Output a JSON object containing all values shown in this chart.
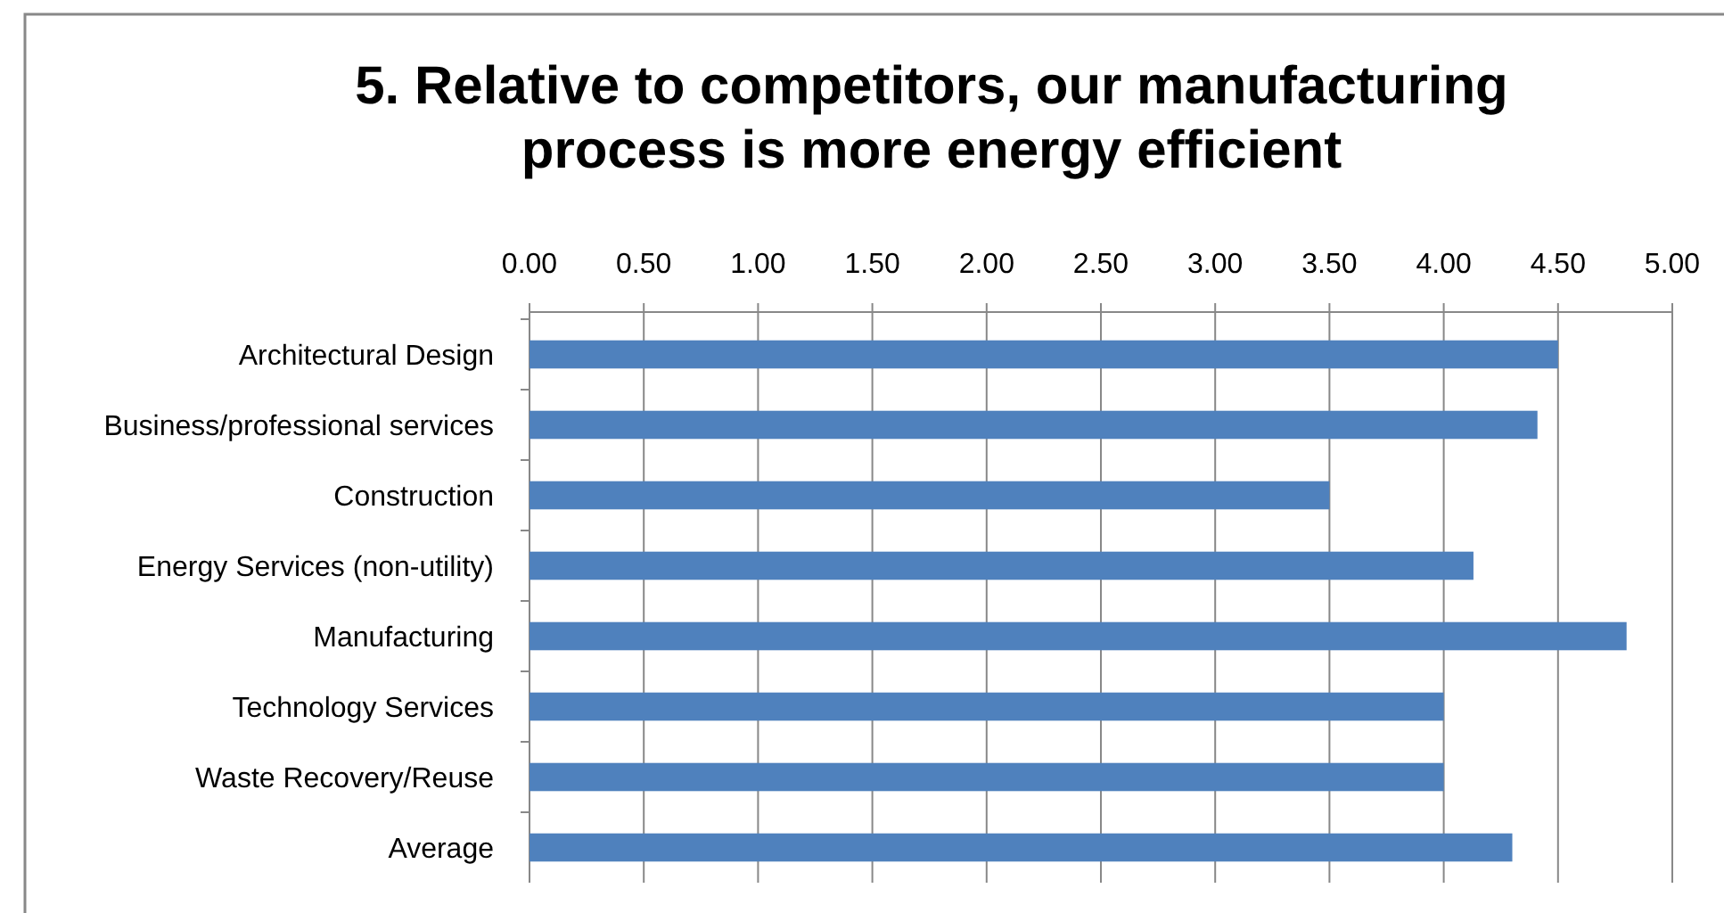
{
  "chart_data": {
    "type": "bar",
    "orientation": "horizontal",
    "title": "5. Relative to competitors, our manufacturing process is more energy efficient",
    "categories": [
      "Architectural Design",
      "Business/professional services",
      "Construction",
      "Energy Services (non-utility)",
      "Manufacturing",
      "Technology Services",
      "Waste Recovery/Reuse",
      "Average"
    ],
    "values": [
      4.5,
      4.41,
      3.5,
      4.13,
      4.8,
      4.0,
      4.0,
      4.3
    ],
    "color": "#4f81bd",
    "xlim": [
      0,
      5
    ],
    "xticks": [
      {
        "value": 0,
        "label": "0.00"
      },
      {
        "value": 0.5,
        "label": "0.50"
      },
      {
        "value": 1,
        "label": "1.00"
      },
      {
        "value": 1.5,
        "label": "1.50"
      },
      {
        "value": 2,
        "label": "2.00"
      },
      {
        "value": 2.5,
        "label": "2.50"
      },
      {
        "value": 3,
        "label": "3.00"
      },
      {
        "value": 3.5,
        "label": "3.50"
      },
      {
        "value": 4,
        "label": "4.00"
      },
      {
        "value": 4.5,
        "label": "4.50"
      },
      {
        "value": 5,
        "label": "5.00"
      }
    ],
    "grid": "x"
  }
}
